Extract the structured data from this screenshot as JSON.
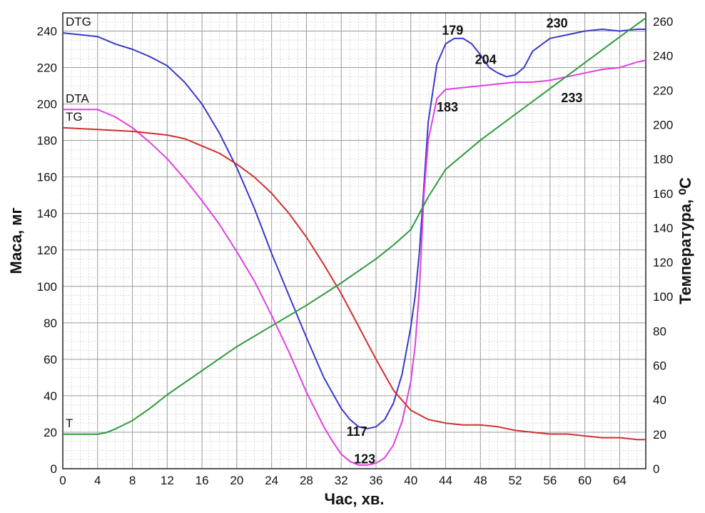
{
  "chart_data": {
    "type": "line",
    "xlabel": "Час, хв.",
    "ylabel_left": "Маса, мг",
    "ylabel_right": "Температура, ⁰С",
    "xlim": [
      0,
      67
    ],
    "ylim_left": [
      0,
      250
    ],
    "ylim_right": [
      0,
      265
    ],
    "x_ticks": [
      "0",
      "4",
      "8",
      "12",
      "16",
      "20",
      "24",
      "28",
      "32",
      "36",
      "40",
      "44",
      "48",
      "52",
      "56",
      "60",
      "64"
    ],
    "y_left_ticks": [
      "0",
      "20",
      "40",
      "60",
      "80",
      "100",
      "120",
      "140",
      "160",
      "180",
      "200",
      "220",
      "240"
    ],
    "y_right_ticks": [
      "0",
      "20",
      "40",
      "60",
      "80",
      "100",
      "120",
      "140",
      "160",
      "180",
      "200",
      "220",
      "240",
      "260"
    ],
    "grid": true,
    "series": [
      {
        "name": "DTG",
        "axis": "left",
        "color": "#3a3ac8",
        "x": [
          0,
          2,
          4,
          6,
          8,
          10,
          12,
          14,
          16,
          18,
          20,
          22,
          24,
          26,
          28,
          30,
          32,
          33,
          34,
          35,
          36,
          37,
          38,
          39,
          40,
          40.5,
          41,
          41.5,
          42,
          43,
          44,
          45,
          46,
          47,
          48,
          49,
          50,
          51,
          52,
          53,
          54,
          56,
          58,
          60,
          62,
          64,
          66,
          67
        ],
        "y": [
          239,
          238,
          237,
          233,
          230,
          226,
          221,
          212,
          200,
          184,
          165,
          143,
          118,
          95,
          72,
          50,
          33,
          27,
          23,
          22,
          23,
          27,
          36,
          52,
          78,
          95,
          120,
          155,
          190,
          222,
          233,
          236,
          236,
          233,
          227,
          220,
          217,
          215,
          216,
          220,
          229,
          236,
          238,
          240,
          241,
          240,
          241,
          241
        ]
      },
      {
        "name": "DTA",
        "axis": "left",
        "color": "#e040e0",
        "x": [
          0,
          2,
          4,
          6,
          8,
          10,
          12,
          14,
          16,
          18,
          20,
          22,
          24,
          26,
          28,
          30,
          31,
          32,
          33,
          34,
          35,
          36,
          37,
          38,
          39,
          40,
          40.5,
          41,
          41.5,
          42,
          43,
          44,
          46,
          48,
          50,
          52,
          54,
          56,
          58,
          60,
          62,
          64,
          66,
          67
        ],
        "y": [
          197,
          197,
          197,
          193,
          187,
          179,
          170,
          159,
          147,
          134,
          119,
          103,
          84,
          64,
          42,
          23,
          15,
          8,
          4,
          2,
          2,
          3,
          6,
          13,
          26,
          48,
          68,
          100,
          150,
          180,
          203,
          208,
          209,
          210,
          211,
          212,
          212,
          213,
          215,
          217,
          219,
          220,
          223,
          224
        ]
      },
      {
        "name": "TG",
        "axis": "left",
        "color": "#d03030",
        "x": [
          0,
          4,
          8,
          12,
          14,
          16,
          18,
          20,
          22,
          24,
          26,
          28,
          30,
          32,
          34,
          36,
          38,
          40,
          42,
          44,
          46,
          48,
          50,
          52,
          54,
          56,
          58,
          60,
          62,
          64,
          66,
          67
        ],
        "y": [
          187,
          186,
          185,
          183,
          181,
          177,
          173,
          167,
          160,
          151,
          140,
          127,
          112,
          96,
          78,
          60,
          43,
          32,
          27,
          25,
          24,
          24,
          23,
          21,
          20,
          19,
          19,
          18,
          17,
          17,
          16,
          16
        ]
      },
      {
        "name": "T",
        "axis": "right",
        "color": "#2e9a3a",
        "x": [
          0,
          2,
          4,
          5,
          6,
          8,
          10,
          12,
          16,
          20,
          24,
          28,
          32,
          36,
          38,
          40,
          42,
          44,
          48,
          52,
          56,
          60,
          64,
          67
        ],
        "y": [
          20,
          20,
          20,
          21,
          23,
          28,
          35,
          43,
          57,
          71,
          83,
          95,
          108,
          122,
          130,
          139,
          158,
          174,
          191,
          206,
          221,
          236,
          251,
          262
        ]
      }
    ],
    "annotations": [
      {
        "text": "117",
        "x": 33.8,
        "axis": "left",
        "y": 18
      },
      {
        "text": "123",
        "x": 34.7,
        "axis": "left",
        "y": 3
      },
      {
        "text": "179",
        "x": 44.8,
        "axis": "left",
        "y": 238
      },
      {
        "text": "204",
        "x": 48.6,
        "axis": "left",
        "y": 222
      },
      {
        "text": "230",
        "x": 56.8,
        "axis": "left",
        "y": 242
      },
      {
        "text": "183",
        "x": 44.2,
        "axis": "left",
        "y": 196
      },
      {
        "text": "233",
        "x": 58.5,
        "axis": "left",
        "y": 201
      }
    ]
  }
}
